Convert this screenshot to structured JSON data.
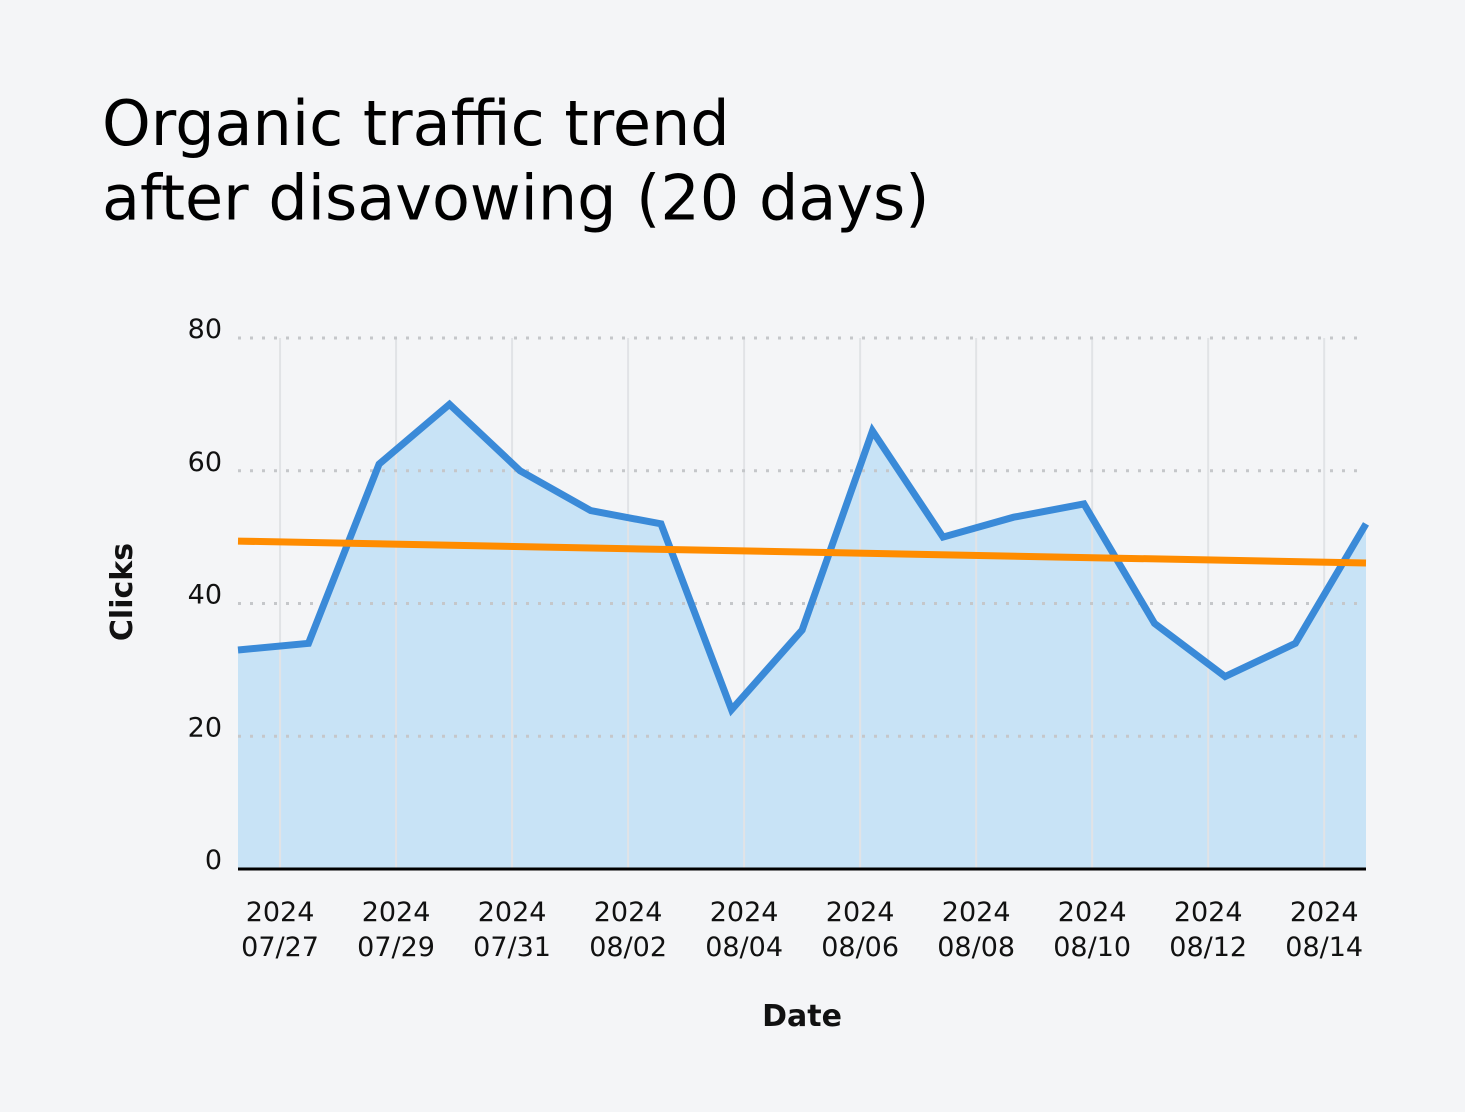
{
  "chart_data": {
    "type": "line",
    "title": "Organic traffic trend\nafter disavowing (20 days)",
    "x_label": "Date",
    "y_label": "Clicks",
    "x": [
      "2024-07-26T06:36",
      "2024-07-27T11:46",
      "2024-07-28T16:58",
      "2024-07-29T22:06",
      "2024-07-31T03:18",
      "2024-08-01T08:30",
      "2024-08-02T13:36",
      "2024-08-03T18:48",
      "2024-08-05T00:00",
      "2024-08-06T05:06",
      "2024-08-07T10:18",
      "2024-08-08T15:30",
      "2024-08-09T20:36",
      "2024-08-11T01:48",
      "2024-08-12T07:00",
      "2024-08-13T12:06",
      "2024-08-14T17:18"
    ],
    "series": [
      {
        "color": "#3a8ad8",
        "fill": "#c8e3f6",
        "values": [
          33,
          34,
          61,
          70,
          60,
          54,
          52,
          24,
          36,
          66,
          50,
          53,
          55,
          37,
          29,
          34,
          52
        ]
      },
      {
        "color": "#ff8c00",
        "x": [
          "2024-07-26T06:36",
          "2024-08-14T17:18"
        ],
        "values": [
          49.4,
          46.1
        ]
      }
    ],
    "xlim": [
      "2024-07-26T06:36",
      "2024-08-14T17:18"
    ],
    "xticks": [
      {
        "value": "2024-07-27",
        "label": "2024\n07/27"
      },
      {
        "value": "2024-07-29",
        "label": "2024\n07/29"
      },
      {
        "value": "2024-07-31",
        "label": "2024\n07/31"
      },
      {
        "value": "2024-08-02",
        "label": "2024\n08/02"
      },
      {
        "value": "2024-08-04",
        "label": "2024\n08/04"
      },
      {
        "value": "2024-08-06",
        "label": "2024\n08/06"
      },
      {
        "value": "2024-08-08",
        "label": "2024\n08/08"
      },
      {
        "value": "2024-08-10",
        "label": "2024\n08/10"
      },
      {
        "value": "2024-08-12",
        "label": "2024\n08/12"
      },
      {
        "value": "2024-08-14",
        "label": "2024\n08/14"
      }
    ],
    "ylim": [
      0,
      80
    ],
    "yticks": [
      0,
      20,
      40,
      60,
      80
    ],
    "grid": true
  }
}
